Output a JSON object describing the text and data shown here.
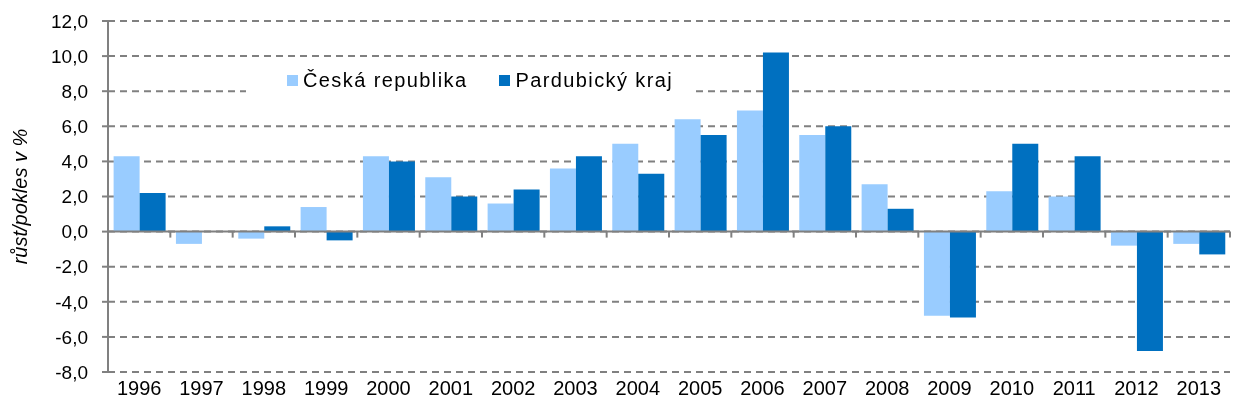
{
  "chart_data": {
    "type": "bar",
    "ylabel": "růst/pokles v %",
    "categories": [
      "1996",
      "1997",
      "1998",
      "1999",
      "2000",
      "2001",
      "2002",
      "2003",
      "2004",
      "2005",
      "2006",
      "2007",
      "2008",
      "2009",
      "2010",
      "2011",
      "2012",
      "2013"
    ],
    "series": [
      {
        "name": "Česká republika",
        "color": "#99ccff",
        "values": [
          4.3,
          -0.7,
          -0.4,
          1.4,
          4.3,
          3.1,
          1.6,
          3.6,
          5.0,
          6.4,
          6.9,
          5.5,
          2.7,
          -4.8,
          2.3,
          2.0,
          -0.8,
          -0.7
        ]
      },
      {
        "name": "Pardubický kraj",
        "color": "#0070c0",
        "values": [
          2.2,
          0.0,
          0.3,
          -0.5,
          4.0,
          2.0,
          2.4,
          4.3,
          3.3,
          5.5,
          10.2,
          6.0,
          1.3,
          -4.9,
          5.0,
          4.3,
          -6.8,
          -1.3
        ]
      }
    ],
    "ylim": [
      -8,
      12
    ],
    "yticks": [
      {
        "value": -8,
        "label": "-8,0"
      },
      {
        "value": -6,
        "label": "-6,0"
      },
      {
        "value": -4,
        "label": "-4,0"
      },
      {
        "value": -2,
        "label": "-2,0"
      },
      {
        "value": 0,
        "label": "0,0"
      },
      {
        "value": 2,
        "label": "2,0"
      },
      {
        "value": 4,
        "label": "4,0"
      },
      {
        "value": 6,
        "label": "6,0"
      },
      {
        "value": 8,
        "label": "8,0"
      },
      {
        "value": 10,
        "label": "10,0"
      },
      {
        "value": 12,
        "label": "12,0"
      }
    ],
    "grid": "y",
    "legend": "top left"
  }
}
